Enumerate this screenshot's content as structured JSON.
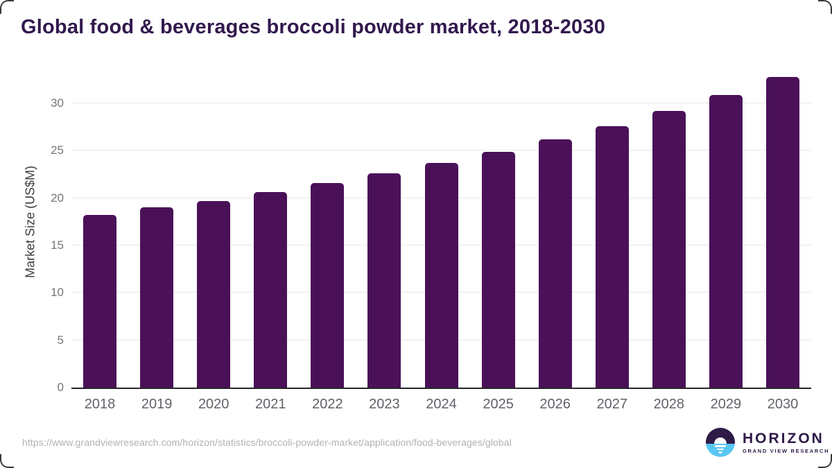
{
  "chart_data": {
    "type": "bar",
    "title": "Global food & beverages broccoli powder market, 2018-2030",
    "ylabel": "Market Size (US$M)",
    "xlabel": "",
    "categories": [
      "2018",
      "2019",
      "2020",
      "2021",
      "2022",
      "2023",
      "2024",
      "2025",
      "2026",
      "2027",
      "2028",
      "2029",
      "2030"
    ],
    "values": [
      18.2,
      19.0,
      19.7,
      20.6,
      21.6,
      22.6,
      23.7,
      24.9,
      26.2,
      27.6,
      29.2,
      30.9,
      32.8
    ],
    "y_ticks": [
      0,
      5,
      10,
      15,
      20,
      25,
      30
    ],
    "ylim": [
      0,
      32.85
    ],
    "grid": "horizontal",
    "legend_position": "none",
    "colors": {
      "bar": "#4a1158",
      "title_text": "#32194e",
      "axis_line": "#262626",
      "gridline": "#e7e7e7",
      "y_tick_text": "#757575",
      "x_tick_text": "#5f6368",
      "y_axis_title_text": "#3c4043"
    }
  },
  "footer": {
    "source_url": "https://www.grandviewresearch.com/horizon/statistics/broccoli-powder-market/application/food-beverages/global",
    "logo": {
      "name": "HORIZON",
      "sub": "GRAND VIEW RESEARCH",
      "icon_top_color": "#2e1a47",
      "icon_bottom_color": "#58c6f2"
    }
  }
}
